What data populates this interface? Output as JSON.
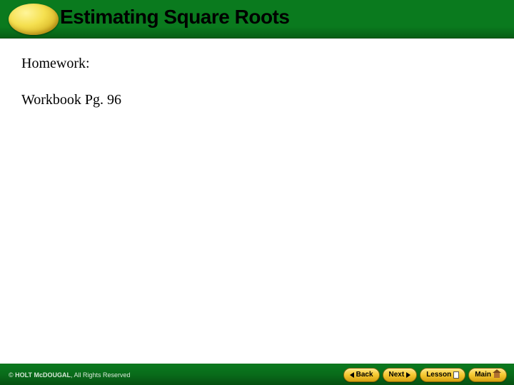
{
  "header": {
    "title": "Estimating Square Roots",
    "background_color": "#0a7a1e",
    "oval_color_light": "#fff59a",
    "oval_color_dark": "#a08010",
    "title_color": "#000000",
    "title_fontsize": 28
  },
  "content": {
    "line1": "Homework:",
    "line2": "Workbook Pg. 96",
    "text_color": "#000000",
    "fontsize": 20,
    "background_color": "#ffffff"
  },
  "footer": {
    "background_color": "#0a7a1e",
    "copyright_brand": "HOLT McDOUGAL",
    "copyright_text": ", All Rights Reserved",
    "copyright_color": "#d8e8d8",
    "copyright_fontsize": 9,
    "buttons": {
      "back": "Back",
      "next": "Next",
      "lesson": "Lesson",
      "main": "Main"
    },
    "button_bg_light": "#ffe680",
    "button_bg_dark": "#d4a010",
    "button_border": "#8a6a05",
    "button_text_color": "#000000",
    "button_fontsize": 10
  }
}
